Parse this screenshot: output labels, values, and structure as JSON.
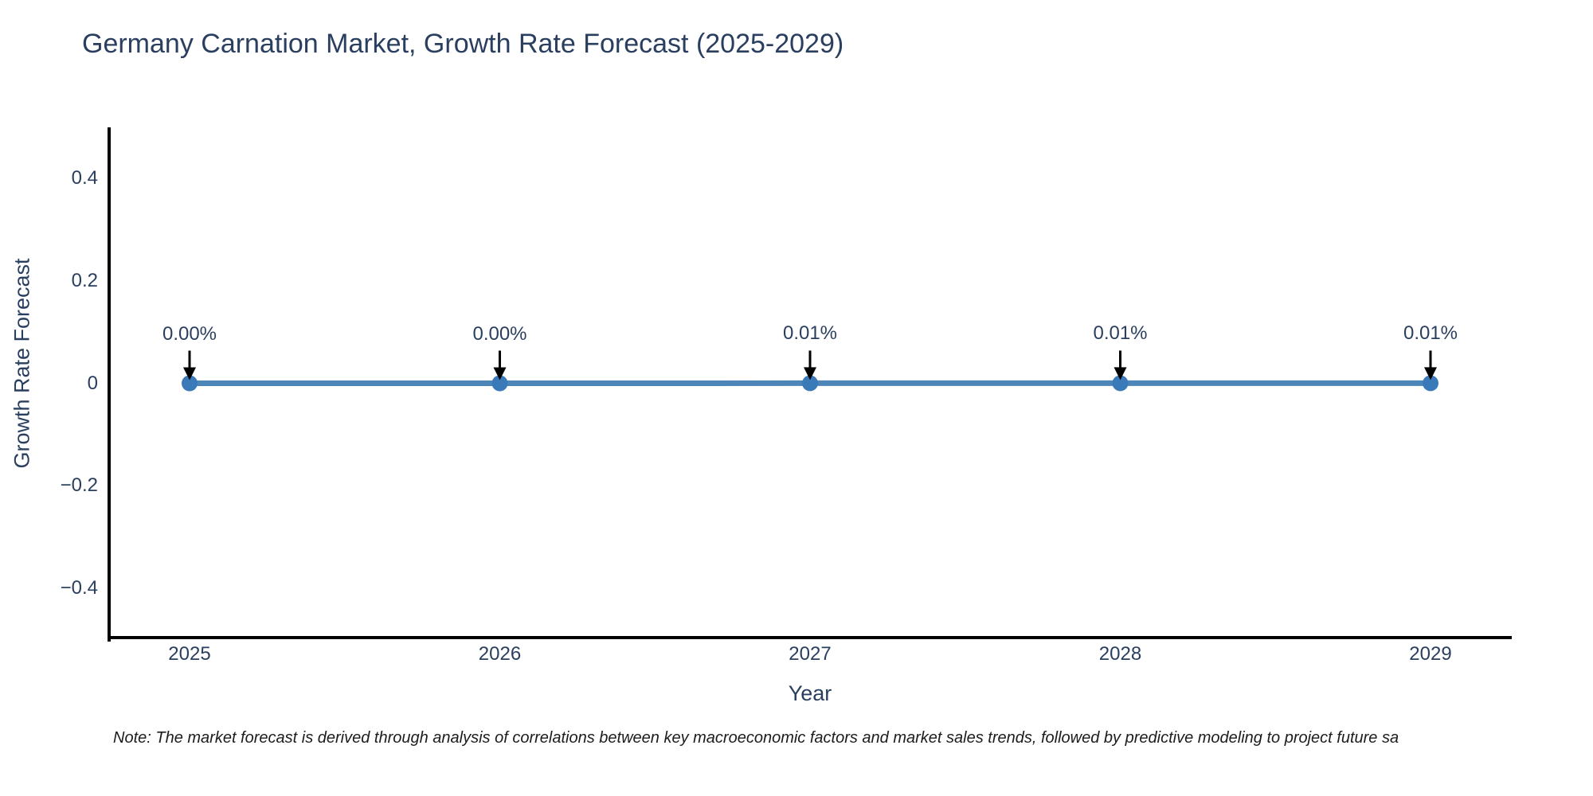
{
  "chart_data": {
    "type": "line",
    "title": "Germany Carnation Market, Growth Rate Forecast (2025-2029)",
    "xlabel": "Year",
    "ylabel": "Growth Rate Forecast",
    "x": [
      2025,
      2026,
      2027,
      2028,
      2029
    ],
    "xticks": [
      "2025",
      "2026",
      "2027",
      "2028",
      "2029"
    ],
    "series": [
      {
        "name": "Growth Rate Forecast",
        "values_percent": [
          0.0,
          0.0,
          0.01,
          0.01,
          0.01
        ],
        "plotted_y": [
          0.0,
          0.0,
          0.0001,
          0.0001,
          0.0001
        ]
      }
    ],
    "point_labels": [
      "0.00%",
      "0.00%",
      "0.01%",
      "0.01%",
      "0.01%"
    ],
    "ylim": [
      -0.5,
      0.5
    ],
    "yticks": {
      "values": [
        0.4,
        0.2,
        0,
        -0.2,
        -0.4
      ],
      "labels": [
        "0.4",
        "0.2",
        "0",
        "−0.2",
        "−0.4"
      ]
    },
    "grid": false,
    "legend": "none",
    "colors": {
      "line": "#4c86b8",
      "marker": "#3b7ab8",
      "axis": "#000000",
      "text": "#2a3f5f",
      "annotation_arrow": "#000000"
    }
  },
  "note": {
    "text": "Note: The market forecast is derived through analysis of correlations between key macroeconomic factors and market sales trends, followed by predictive modeling to project future sa"
  }
}
